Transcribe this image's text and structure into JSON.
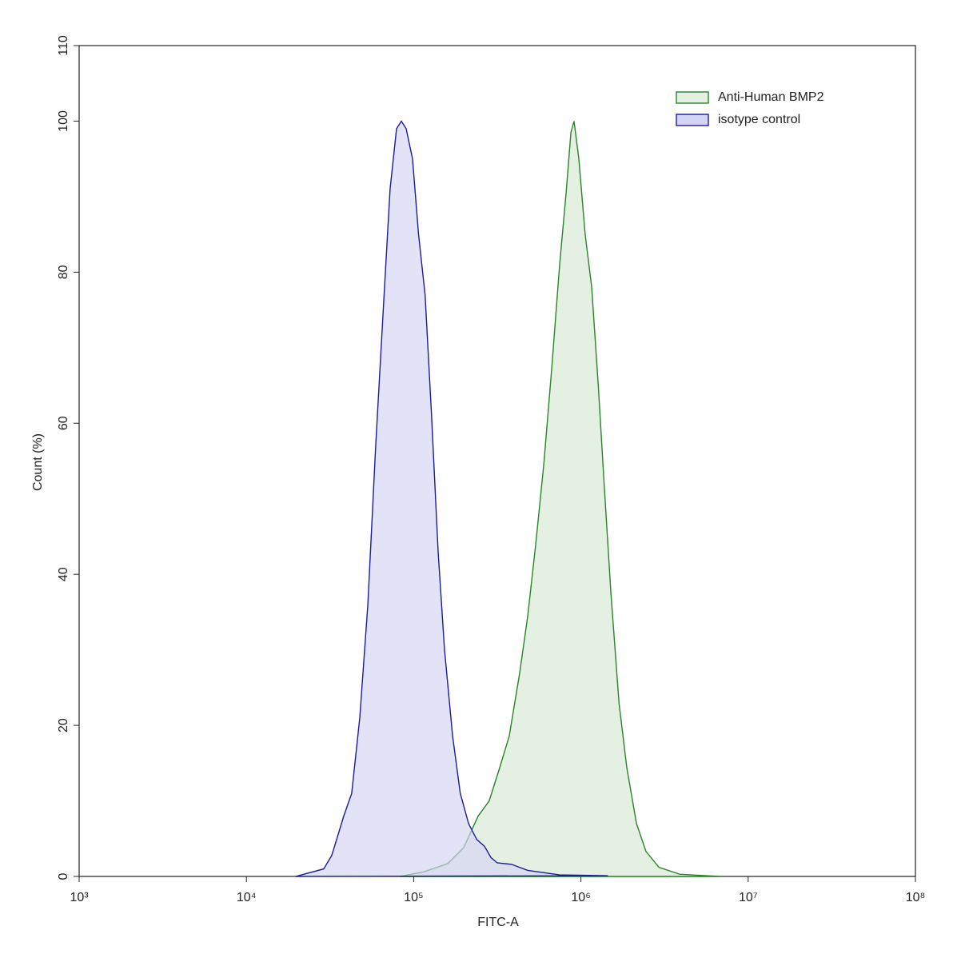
{
  "chart_data": {
    "type": "histogram-overlay",
    "xlabel": "FITC-A",
    "ylabel": "Count (%)",
    "log_x": true,
    "xlim": [
      1000,
      100000000
    ],
    "xticks": [
      {
        "value": 1000,
        "label": "10³"
      },
      {
        "value": 10000,
        "label": "10⁴"
      },
      {
        "value": 100000,
        "label": "10⁵"
      },
      {
        "value": 1000000,
        "label": "10⁶"
      },
      {
        "value": 10000000,
        "label": "10⁷"
      },
      {
        "value": 100000000,
        "label": "10⁸"
      }
    ],
    "ylim": [
      0,
      110
    ],
    "yticks": [
      0,
      20,
      40,
      60,
      80,
      100,
      110
    ],
    "legend": "upper-right",
    "series": [
      {
        "name": "Anti-Human BMP2",
        "color": "#2a842a",
        "fill": "#e4f1e2",
        "x": [
          82600,
          115000,
          160000,
          199000,
          243000,
          283000,
          327000,
          373000,
          431000,
          481000,
          537000,
          600000,
          670000,
          746000,
          816000,
          871000,
          910000,
          972000,
          1060000,
          1160000,
          1270000,
          1380000,
          1510000,
          1690000,
          1880000,
          2150000,
          2450000,
          2930000,
          3890000,
          6750000
        ],
        "values": [
          0,
          0.6,
          1.7,
          3.8,
          8,
          10,
          14.4,
          18.6,
          27,
          34.5,
          44,
          54.6,
          67.4,
          81,
          90.5,
          98.5,
          100,
          95,
          85,
          78,
          65,
          51.5,
          37.7,
          22.9,
          14.4,
          7,
          3.3,
          1.2,
          0.3,
          0
        ]
      },
      {
        "name": "isotype control",
        "color": "#1c1c9c",
        "fill": "#d4d4f4",
        "x": [
          19700,
          29000,
          32400,
          38200,
          42600,
          47600,
          53200,
          59300,
          66200,
          72300,
          79000,
          84400,
          90200,
          98500,
          107000,
          117000,
          128000,
          140000,
          153000,
          171000,
          190000,
          213000,
          238000,
          265000,
          290000,
          316000,
          385000,
          481000,
          746000,
          1450000
        ],
        "values": [
          0,
          1,
          2.8,
          8,
          11,
          21,
          36,
          57,
          76,
          91,
          99,
          100,
          99,
          95,
          85,
          77,
          61,
          43,
          30,
          18.6,
          11,
          7,
          4.9,
          4,
          2.5,
          1.8,
          1.6,
          0.8,
          0.2,
          0.1
        ]
      }
    ]
  }
}
